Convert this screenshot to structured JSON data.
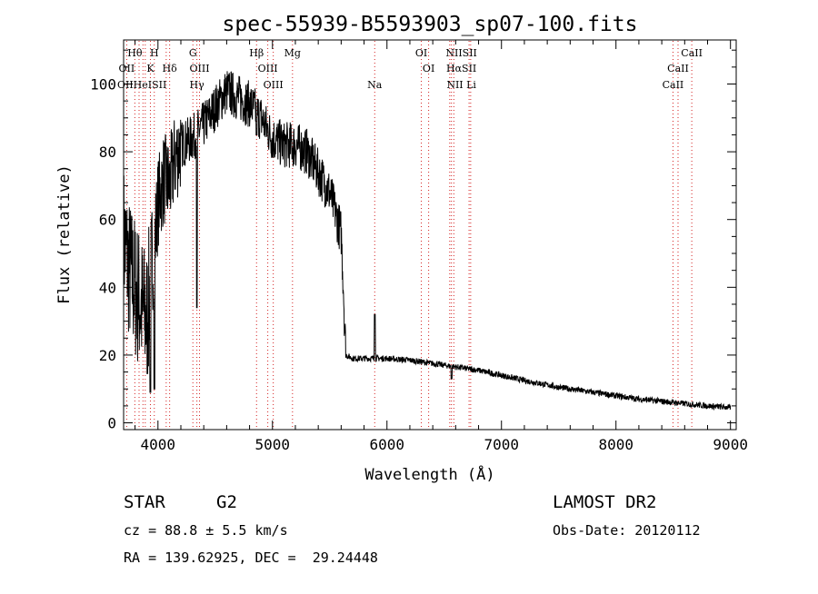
{
  "chart_data": {
    "type": "line",
    "title": "spec-55939-B5593903_sp07-100.fits",
    "xlabel": "Wavelength (Å)",
    "ylabel": "Flux (relative)",
    "xlim": [
      3700,
      9050
    ],
    "ylim": [
      -2,
      113
    ],
    "xticks": [
      4000,
      5000,
      6000,
      7000,
      8000,
      9000
    ],
    "xtick_labels": [
      "4000",
      "5000",
      "6000",
      "7000",
      "8000",
      "9000"
    ],
    "yticks": [
      0,
      20,
      40,
      60,
      80,
      100
    ],
    "ytick_labels": [
      "0",
      "20",
      "40",
      "60",
      "80",
      "100"
    ],
    "grid": false,
    "spectrum_envelope": {
      "x": [
        3700,
        3750,
        3800,
        3850,
        3900,
        3950,
        4000,
        4050,
        4100,
        4150,
        4200,
        4300,
        4400,
        4500,
        4600,
        4700,
        4800,
        4900,
        5000,
        5100,
        5200,
        5300,
        5400,
        5500,
        5600,
        5620,
        5640,
        5700,
        5800,
        5900,
        6000,
        6200,
        6400,
        6600,
        6800,
        7000,
        7200,
        7500,
        7800,
        8000,
        8200,
        8500,
        8800,
        9000
      ],
      "y": [
        55,
        45,
        40,
        35,
        30,
        45,
        65,
        72,
        70,
        78,
        82,
        84,
        88,
        93,
        98,
        96,
        94,
        90,
        84,
        82,
        82,
        80,
        74,
        68,
        56,
        40,
        20,
        19,
        19,
        19,
        19,
        18.5,
        17.5,
        16.5,
        15.5,
        14,
        12.5,
        10.5,
        9,
        8,
        7,
        6,
        5,
        4.5
      ]
    },
    "spectrum_features": [
      {
        "x": 3934,
        "y": 9
      },
      {
        "x": 3968,
        "y": 10
      },
      {
        "x": 4340,
        "y": 34
      },
      {
        "x": 4861,
        "y": 85
      },
      {
        "x": 5893,
        "y": 32
      },
      {
        "x": 6563,
        "y": 13
      }
    ],
    "line_markers": [
      {
        "label": "Hθ",
        "x": 3798,
        "row": 0
      },
      {
        "label": "H",
        "x": 3968,
        "row": 0
      },
      {
        "label": "G",
        "x": 4305,
        "row": 0
      },
      {
        "label": "Hβ",
        "x": 4861,
        "row": 0
      },
      {
        "label": "Mg",
        "x": 5175,
        "row": 0
      },
      {
        "label": "OI",
        "x": 6300,
        "row": 0
      },
      {
        "label": "NIISII",
        "x": 6650,
        "row": 0
      },
      {
        "label": "CaII",
        "x": 8662,
        "row": 0
      },
      {
        "label": "OII",
        "x": 3727,
        "row": 1
      },
      {
        "label": "K",
        "x": 3934,
        "row": 1
      },
      {
        "label": "Hδ",
        "x": 4102,
        "row": 1
      },
      {
        "label": "OIII",
        "x": 4363,
        "row": 1
      },
      {
        "label": "OIII",
        "x": 4959,
        "row": 1
      },
      {
        "label": "OI",
        "x": 6364,
        "row": 1
      },
      {
        "label": "HαSII",
        "x": 6650,
        "row": 1
      },
      {
        "label": "CaII",
        "x": 8542,
        "row": 1
      },
      {
        "label": "OIIHeISII",
        "x": 3860,
        "row": 2
      },
      {
        "label": "Hγ",
        "x": 4340,
        "row": 2
      },
      {
        "label": "OIII",
        "x": 5007,
        "row": 2
      },
      {
        "label": "Na",
        "x": 5893,
        "row": 2
      },
      {
        "label": "NII Li",
        "x": 6650,
        "row": 2
      },
      {
        "label": "CaII",
        "x": 8498,
        "row": 2
      }
    ],
    "marker_lines": [
      3727,
      3798,
      3835,
      3869,
      3889,
      3934,
      3968,
      4072,
      4102,
      4305,
      4340,
      4363,
      4861,
      4959,
      5007,
      5175,
      5893,
      6300,
      6364,
      6548,
      6563,
      6584,
      6717,
      6731,
      8498,
      8542,
      8662
    ]
  },
  "info": {
    "object_type": "STAR",
    "subclass": "G2",
    "survey": "LAMOST DR2",
    "cz": "cz = 88.8 ± 5.5 km/s",
    "obs_date": "Obs-Date: 20120112",
    "coords": "RA = 139.62925, DEC =  29.24448"
  }
}
